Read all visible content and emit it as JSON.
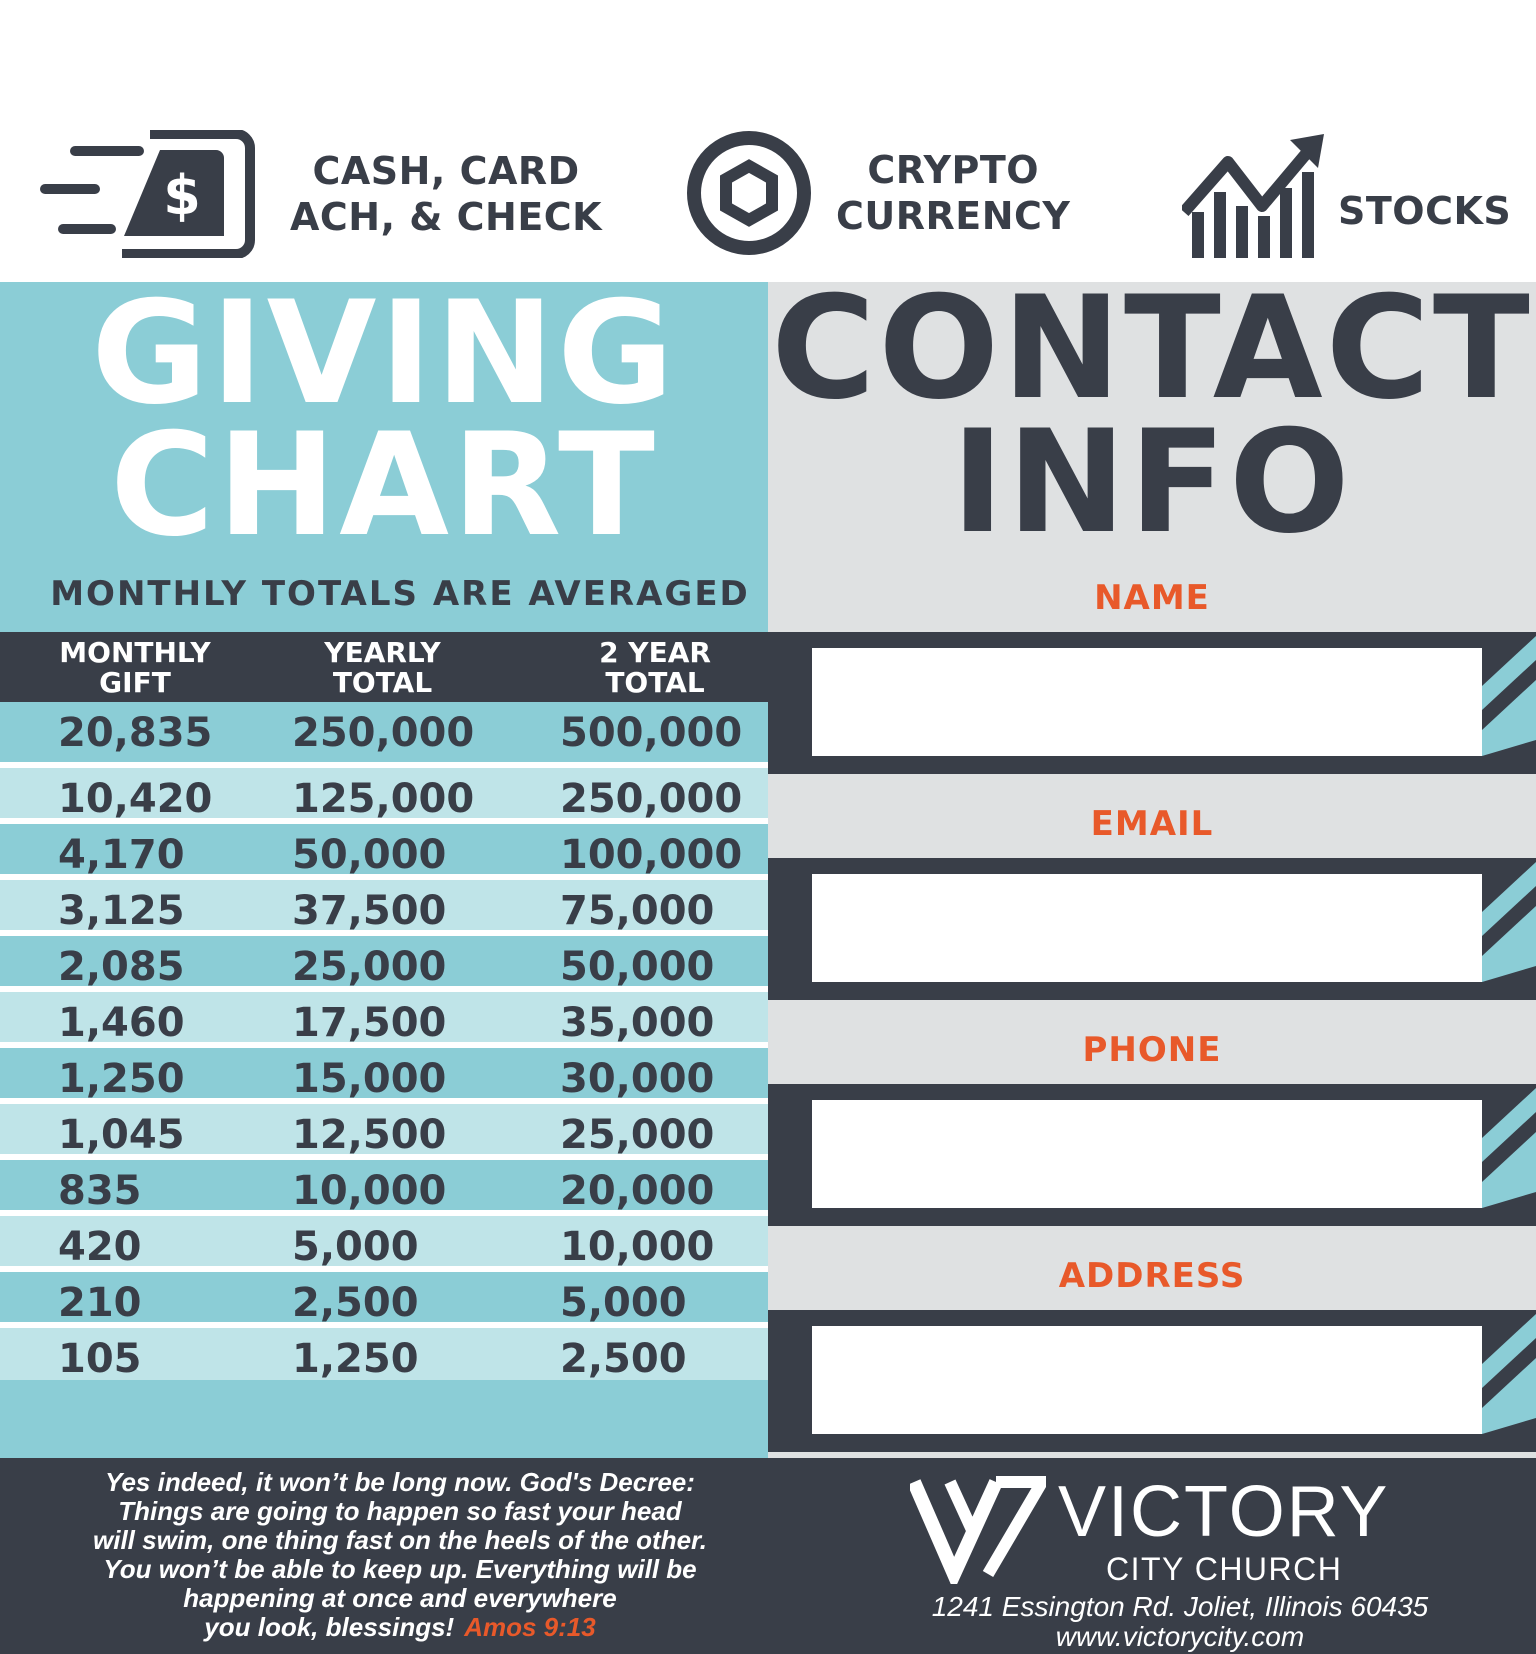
{
  "methods": {
    "cash": {
      "line1": "CASH, CARD",
      "line2": "ACH, & CHECK",
      "icon": "cash-icon"
    },
    "crypto": {
      "line1": "CRYPTO",
      "line2": "CURRENCY",
      "icon": "crypto-coin-icon"
    },
    "stocks": {
      "label": "STOCKS",
      "icon": "stocks-chart-icon"
    }
  },
  "giving": {
    "title_line1": "GIVING",
    "title_line2": "CHART",
    "subtitle": "MONTHLY TOTALS ARE AVERAGED",
    "headers": {
      "monthly_1": "MONTHLY",
      "monthly_2": "GIFT",
      "yearly_1": "YEARLY",
      "yearly_2": "TOTAL",
      "two_year_1": "2 YEAR",
      "two_year_2": "TOTAL"
    },
    "rows": [
      [
        "20,835",
        "250,000",
        "500,000"
      ],
      [
        "10,420",
        "125,000",
        "250,000"
      ],
      [
        "4,170",
        "50,000",
        "100,000"
      ],
      [
        "3,125",
        "37,500",
        "75,000"
      ],
      [
        "2,085",
        "25,000",
        "50,000"
      ],
      [
        "1,460",
        "17,500",
        "35,000"
      ],
      [
        "1,250",
        "15,000",
        "30,000"
      ],
      [
        "1,045",
        "12,500",
        "25,000"
      ],
      [
        "835",
        "10,000",
        "20,000"
      ],
      [
        "420",
        "5,000",
        "10,000"
      ],
      [
        "210",
        "2,500",
        "5,000"
      ],
      [
        "105",
        "1,250",
        "2,500"
      ]
    ]
  },
  "contact": {
    "title_line1": "CONTACT",
    "title_line2": "INFO",
    "fields": {
      "name": "NAME",
      "email": "EMAIL",
      "phone": "PHONE",
      "address": "ADDRESS"
    }
  },
  "footer": {
    "verse": {
      "l1": "Yes indeed, it won’t be long now. God's Decree:",
      "l2": "Things are going to happen so fast your head",
      "l3": "will swim, one thing fast on the heels of the other.",
      "l4": "You won’t be able to keep up. Everything will be",
      "l5": "happening at once and everywhere",
      "l6": "you look, blessings!",
      "ref": "Amos 9:13"
    },
    "brand_name": "VICTORY",
    "brand_sub": "CITY CHURCH",
    "street": "1241 Essington Rd.  Joliet, Illinois 60435",
    "website": "www.victorycity.com"
  },
  "colors": {
    "teal": "#8bcdd6",
    "teal_light": "#bfe4e8",
    "charcoal": "#393e48",
    "light_gray": "#dfe1e2",
    "orange": "#e8592a"
  }
}
